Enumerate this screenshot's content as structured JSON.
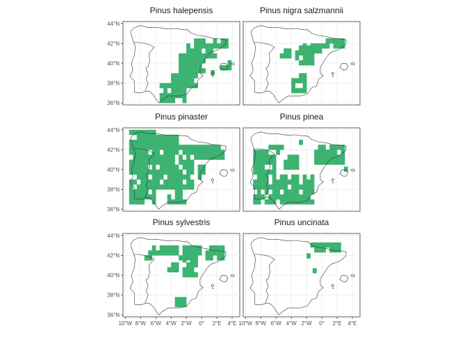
{
  "figure": {
    "panels": [
      {
        "title": "Pinus halepensis",
        "species_key": "halepensis"
      },
      {
        "title": "Pinus nigra salzmannii",
        "species_key": "nigra"
      },
      {
        "title": "Pinus pinaster",
        "species_key": "pinaster"
      },
      {
        "title": "Pinus pinea",
        "species_key": "pinea"
      },
      {
        "title": "Pinus sylvestris",
        "species_key": "sylvestris"
      },
      {
        "title": "Pinus uncinata",
        "species_key": "uncinata"
      }
    ],
    "y_axis_labels": [
      "44°N",
      "42°N",
      "40°N",
      "38°N",
      "36°N"
    ],
    "x_axis_labels": [
      "10°W",
      "8°W",
      "6°W",
      "4°W",
      "2°W",
      "0°",
      "2°E",
      "4°E"
    ],
    "fill_color": "#3cb371"
  },
  "chart_data": {
    "type": "heatmap",
    "description_units": "longitude (negative = W), latitude (°N)",
    "lon_range": [
      -10,
      5
    ],
    "lat_range": [
      35.8,
      44.3
    ],
    "cell_size_deg": 0.5,
    "series": [
      {
        "name": "Pinus halepensis",
        "regions": [
          [
            -5.5,
            36.0,
            -2.0,
            38.0
          ],
          [
            -4.0,
            37.5,
            -0.5,
            39.5
          ],
          [
            -3.0,
            39.0,
            0.5,
            41.0
          ],
          [
            -2.0,
            40.5,
            2.0,
            42.0
          ],
          [
            -1.0,
            41.5,
            3.2,
            42.5
          ],
          [
            -5.0,
            40.5,
            -4.0,
            41.0
          ],
          [
            -2.5,
            38.0,
            -1.0,
            39.0
          ],
          [
            1.2,
            38.8,
            1.6,
            39.2
          ],
          [
            2.4,
            39.3,
            3.5,
            39.9
          ]
        ]
      },
      {
        "name": "Pinus nigra salzmannii",
        "regions": [
          [
            -3.5,
            39.8,
            -1.0,
            41.5
          ],
          [
            -2.5,
            41.0,
            0.0,
            42.0
          ],
          [
            0.0,
            41.5,
            3.0,
            42.5
          ],
          [
            -5.5,
            40.5,
            -4.0,
            41.5
          ],
          [
            -4.0,
            37.0,
            -2.0,
            38.5
          ],
          [
            -3.0,
            38.0,
            -2.0,
            38.8
          ]
        ]
      },
      {
        "name": "Pinus pinaster",
        "regions": [
          [
            -9.5,
            36.5,
            -6.0,
            43.8
          ],
          [
            -6.0,
            38.0,
            -1.0,
            42.5
          ],
          [
            -7.0,
            42.5,
            -3.0,
            43.5
          ],
          [
            -4.5,
            36.5,
            -2.0,
            38.5
          ],
          [
            -1.0,
            41.0,
            3.0,
            42.5
          ],
          [
            -0.5,
            39.0,
            0.5,
            40.5
          ]
        ]
      },
      {
        "name": "Pinus pinea",
        "regions": [
          [
            -9.0,
            36.5,
            -6.0,
            42.0
          ],
          [
            -6.0,
            36.5,
            -1.0,
            39.5
          ],
          [
            -5.0,
            40.0,
            -3.0,
            41.5
          ],
          [
            -1.0,
            40.5,
            3.0,
            42.5
          ],
          [
            -7.0,
            41.5,
            -5.0,
            42.5
          ],
          [
            -3.0,
            42.5,
            -2.0,
            43.0
          ],
          [
            2.9,
            39.8,
            3.3,
            40.2
          ]
        ]
      },
      {
        "name": "Pinus sylvestris",
        "regions": [
          [
            -6.5,
            42.0,
            -3.0,
            43.0
          ],
          [
            -3.0,
            41.5,
            3.0,
            42.8
          ],
          [
            -4.5,
            40.3,
            -3.0,
            41.0
          ],
          [
            -2.5,
            39.8,
            -0.5,
            41.5
          ],
          [
            -3.5,
            36.8,
            -2.0,
            37.6
          ],
          [
            -7.5,
            41.5,
            -6.5,
            42.2
          ]
        ]
      },
      {
        "name": "Pinus uncinata",
        "regions": [
          [
            -1.5,
            42.3,
            2.5,
            43.0
          ],
          [
            -2.0,
            41.7,
            -1.5,
            42.0
          ],
          [
            -1.2,
            40.2,
            -0.8,
            40.5
          ]
        ]
      }
    ]
  }
}
